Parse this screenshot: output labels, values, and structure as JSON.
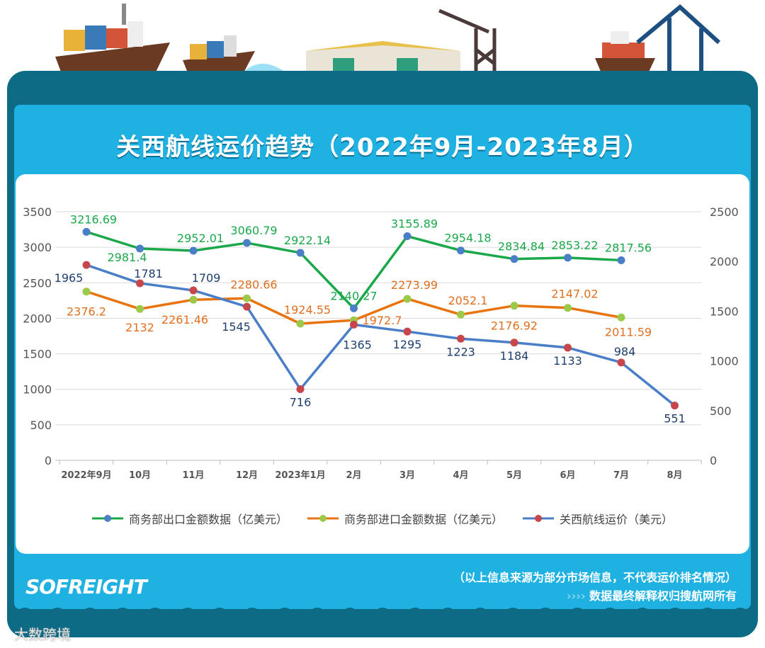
{
  "title": "关西航线运价趋势（2022年9月-2023年8月）",
  "chart_data": {
    "type": "line",
    "title": "关西航线运价趋势（2022年9月-2023年8月）",
    "categories": [
      "2022年9月",
      "10月",
      "11月",
      "12月",
      "2023年1月",
      "2月",
      "3月",
      "4月",
      "5月",
      "6月",
      "7月",
      "8月"
    ],
    "y_left": {
      "range": [
        0,
        3500
      ],
      "ticks": [
        0,
        500,
        1000,
        1500,
        2000,
        2500,
        3000,
        3500
      ]
    },
    "y_right": {
      "range": [
        0,
        2500
      ],
      "ticks": [
        0,
        500,
        1000,
        1500,
        2000,
        2500
      ]
    },
    "grid": true,
    "legend_position": "bottom",
    "series": [
      {
        "name": "商务部出口金额数据（亿美元）",
        "axis": "left",
        "line_color": "#1aa84a",
        "marker_color": "#4a7fc8",
        "label_color": "#1aa84a",
        "values": [
          3216.69,
          2981.4,
          2952.01,
          3060.79,
          2922.14,
          2140.27,
          3155.89,
          2954.18,
          2834.84,
          2853.22,
          2817.56,
          null
        ]
      },
      {
        "name": "商务部进口金额数据（亿美元）",
        "axis": "left",
        "line_color": "#e8740f",
        "marker_color": "#9bc94a",
        "label_color": "#e07020",
        "values": [
          2376.2,
          2132,
          2261.46,
          2280.66,
          1924.55,
          1972.7,
          2273.99,
          2052.1,
          2176.92,
          2147.02,
          2011.59,
          null
        ]
      },
      {
        "name": "关西航线运价（美元）",
        "axis": "right",
        "line_color": "#4a7fc8",
        "marker_color": "#c8464a",
        "label_color": "#1f3f6e",
        "values": [
          1965,
          1781,
          1709,
          1545,
          716,
          1365,
          1295,
          1223,
          1184,
          1133,
          984,
          551
        ]
      }
    ]
  },
  "footer": {
    "note1": "（以上信息来源为部分市场信息，不代表运价排名情况）",
    "note2_arrows": "››››",
    "note2": "数据最终解释权归搜航网所有",
    "logo": "SOFREIGHT",
    "watermark": "大数跨境"
  }
}
